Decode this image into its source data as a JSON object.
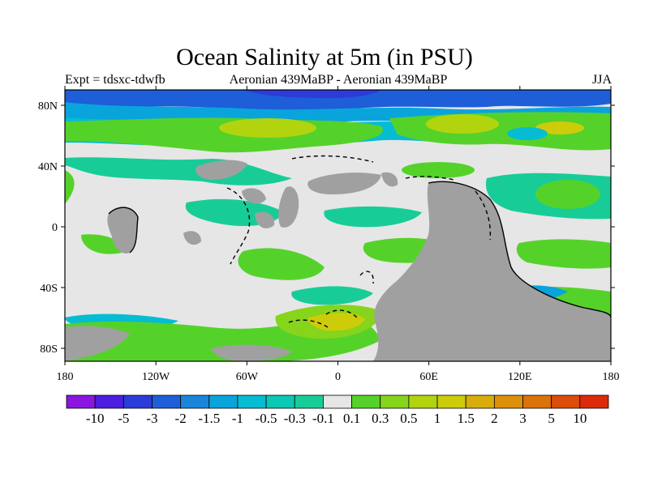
{
  "title": "Ocean Salinity at 5m (in PSU)",
  "subtitle_left": "Expt = tdsxc-tdwfb",
  "subtitle_center": "Aeronian 439MaBP - Aeronian 439MaBP",
  "subtitle_right": "JJA",
  "lon_ticks": [
    "180",
    "120W",
    "60W",
    "0",
    "60E",
    "120E",
    "180"
  ],
  "lat_ticks": [
    "80N",
    "40N",
    "0",
    "40S",
    "80S"
  ],
  "colorbar": {
    "labels": [
      "-10",
      "-5",
      "-3",
      "-2",
      "-1.5",
      "-1",
      "-0.5",
      "-0.3",
      "-0.1",
      "0.1",
      "0.3",
      "0.5",
      "1",
      "1.5",
      "2",
      "3",
      "5",
      "10"
    ],
    "colors": [
      "#8a16e0",
      "#4b1ee0",
      "#2b3cd8",
      "#1e5ed8",
      "#1a86da",
      "#0aa4dc",
      "#06bcd2",
      "#0ac8b4",
      "#18cc98",
      "#e6e6e6",
      "#55d22a",
      "#86d41c",
      "#b2d40e",
      "#cccc0a",
      "#d8ac0a",
      "#dc900a",
      "#dc720a",
      "#dc4c0a",
      "#dc2a0a"
    ]
  },
  "map_colors": {
    "background": "#e6e6e6",
    "land": "#a0a0a0",
    "green": "#55d22a",
    "yellowgreen": "#86d41c",
    "yellow": "#b2d40e",
    "olive": "#cccc0a",
    "teal": "#18cc98",
    "cyan": "#06bcd2",
    "lightblue": "#0aa4dc",
    "blue": "#1e5ed8",
    "darkblue": "#2b3cd8"
  }
}
